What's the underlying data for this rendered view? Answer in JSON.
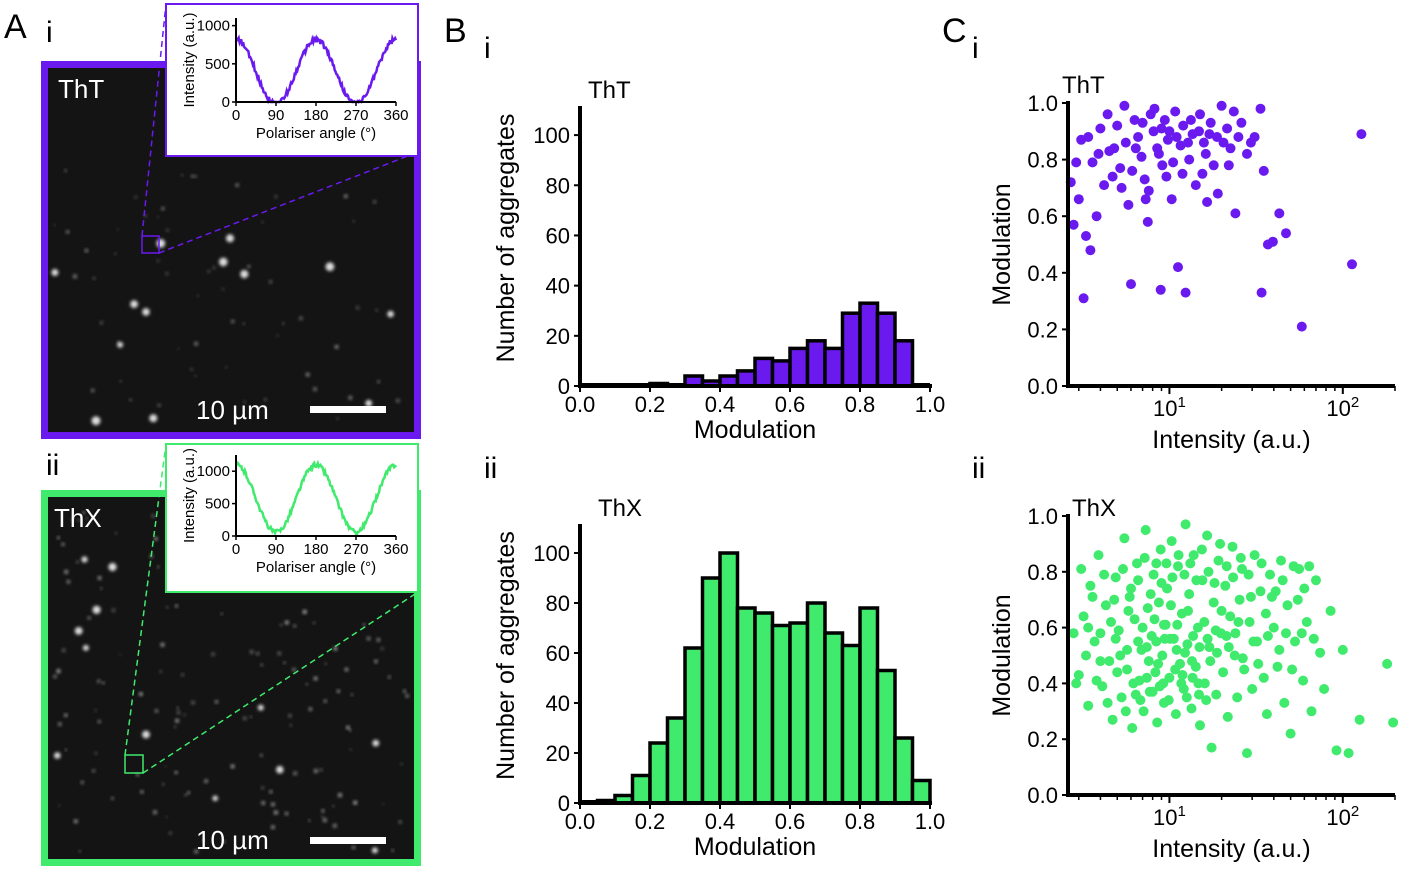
{
  "panels": {
    "A": "A",
    "B": "B",
    "C": "C",
    "sub_i": "i",
    "sub_ii": "ii"
  },
  "colors": {
    "tht": "#6a1aee",
    "thx": "#3fea6c",
    "micrograph_bg": "#141414",
    "spot": "#e8e8e8"
  },
  "micrographs": [
    {
      "dye": "ThT",
      "scalebar": "10 µm",
      "frame_color": "#6a1aee"
    },
    {
      "dye": "ThX",
      "scalebar": "10 µm",
      "frame_color": "#3fea6c"
    }
  ],
  "chart_data": [
    {
      "id": "A-i-inset",
      "type": "line",
      "xlabel": "Polariser angle (°)",
      "ylabel": "Intensity (a.u.)",
      "xlim": [
        0,
        360
      ],
      "ylim": [
        0,
        1100
      ],
      "xticks": [
        0,
        90,
        180,
        270,
        360
      ],
      "yticks": [
        0,
        500,
        1000
      ],
      "series": [
        {
          "color": "#6a1aee",
          "mean": 395,
          "amplitude": 420,
          "phase_deg": 90
        }
      ]
    },
    {
      "id": "A-ii-inset",
      "type": "line",
      "xlabel": "Polariser angle (°)",
      "ylabel": "Intensity (a.u.)",
      "xlim": [
        0,
        360
      ],
      "ylim": [
        0,
        1250
      ],
      "xticks": [
        0,
        90,
        180,
        270,
        360
      ],
      "yticks": [
        0,
        500,
        1000
      ],
      "series": [
        {
          "color": "#3fea6c",
          "mean": 580,
          "amplitude": 520,
          "phase_deg": 90
        }
      ]
    },
    {
      "id": "B-i",
      "type": "bar",
      "title": "ThT",
      "xlabel": "Modulation",
      "ylabel": "Number of aggregates",
      "xlim": [
        0,
        1
      ],
      "ylim": [
        0,
        110
      ],
      "xticks": [
        "0.0",
        "0.2",
        "0.4",
        "0.6",
        "0.8",
        "1.0"
      ],
      "yticks": [
        0,
        20,
        40,
        60,
        80,
        100
      ],
      "bin_width": 0.05,
      "bin_start": 0.0,
      "values": [
        0,
        0,
        0,
        0,
        1,
        0,
        4,
        2,
        4,
        6,
        11,
        10,
        15,
        18,
        15,
        29,
        33,
        29,
        18
      ],
      "color": "#6a1aee"
    },
    {
      "id": "B-ii",
      "type": "bar",
      "title": "ThX",
      "xlabel": "Modulation",
      "ylabel": "Number of aggregates",
      "xlim": [
        0,
        1
      ],
      "ylim": [
        0,
        110
      ],
      "xticks": [
        "0.0",
        "0.2",
        "0.4",
        "0.6",
        "0.8",
        "1.0"
      ],
      "yticks": [
        0,
        20,
        40,
        60,
        80,
        100
      ],
      "bin_width": 0.05,
      "bin_start": 0.0,
      "values": [
        0,
        1,
        3,
        11,
        24,
        34,
        62,
        90,
        100,
        78,
        76,
        71,
        72,
        80,
        68,
        63,
        78,
        53,
        26,
        9
      ],
      "color": "#3fea6c"
    },
    {
      "id": "C-i",
      "type": "scatter",
      "title": "ThT",
      "xlabel": "Intensity (a.u.)",
      "ylabel": "Modulation",
      "xscale": "log",
      "xlim": [
        2.6,
        200
      ],
      "ylim": [
        0,
        1
      ],
      "xticks": [
        10,
        100
      ],
      "yticks": [
        "0.0",
        "0.2",
        "0.4",
        "0.6",
        "0.8",
        "1.0"
      ],
      "color": "#6a1aee",
      "points": [
        [
          3.2,
          0.31
        ],
        [
          3.5,
          0.48
        ],
        [
          3.3,
          0.53
        ],
        [
          2.8,
          0.57
        ],
        [
          3.0,
          0.66
        ],
        [
          2.7,
          0.72
        ],
        [
          2.9,
          0.79
        ],
        [
          3.1,
          0.87
        ],
        [
          3.4,
          0.88
        ],
        [
          3.6,
          0.79
        ],
        [
          3.8,
          0.6
        ],
        [
          4.2,
          0.71
        ],
        [
          4.0,
          0.91
        ],
        [
          4.4,
          0.96
        ],
        [
          4.8,
          0.84
        ],
        [
          5.0,
          0.92
        ],
        [
          5.5,
          0.99
        ],
        [
          5.2,
          0.77
        ],
        [
          5.8,
          0.64
        ],
        [
          6.0,
          0.36
        ],
        [
          6.3,
          0.94
        ],
        [
          6.6,
          0.88
        ],
        [
          6.9,
          0.81
        ],
        [
          7.2,
          0.73
        ],
        [
          7.5,
          0.58
        ],
        [
          7.8,
          0.96
        ],
        [
          8.1,
          0.9
        ],
        [
          8.5,
          0.84
        ],
        [
          8.9,
          0.34
        ],
        [
          9.1,
          0.78
        ],
        [
          9.4,
          0.94
        ],
        [
          9.8,
          0.87
        ],
        [
          10.3,
          0.66
        ],
        [
          10.8,
          0.97
        ],
        [
          11.2,
          0.42
        ],
        [
          11.6,
          0.85
        ],
        [
          12.0,
          0.92
        ],
        [
          12.4,
          0.33
        ],
        [
          13.0,
          0.8
        ],
        [
          13.6,
          0.89
        ],
        [
          14.2,
          0.71
        ],
        [
          15.0,
          0.96
        ],
        [
          15.8,
          0.86
        ],
        [
          16.5,
          0.65
        ],
        [
          17.3,
          0.93
        ],
        [
          18.0,
          0.78
        ],
        [
          19.0,
          0.68
        ],
        [
          20.0,
          0.99
        ],
        [
          21.5,
          0.91
        ],
        [
          22.5,
          0.84
        ],
        [
          24.0,
          0.61
        ],
        [
          26.0,
          0.93
        ],
        [
          28.0,
          0.82
        ],
        [
          31.0,
          0.88
        ],
        [
          33.5,
          0.98
        ],
        [
          35.0,
          0.76
        ],
        [
          34.0,
          0.33
        ],
        [
          37.0,
          0.5
        ],
        [
          39.5,
          0.51
        ],
        [
          43.0,
          0.61
        ],
        [
          47.0,
          0.54
        ],
        [
          58.0,
          0.21
        ],
        [
          113.0,
          0.43
        ],
        [
          128.0,
          0.89
        ],
        [
          4.5,
          0.83
        ],
        [
          5.6,
          0.86
        ],
        [
          6.1,
          0.76
        ],
        [
          7.0,
          0.93
        ],
        [
          7.6,
          0.69
        ],
        [
          8.2,
          0.98
        ],
        [
          9.0,
          0.91
        ],
        [
          9.6,
          0.74
        ],
        [
          10.0,
          0.9
        ],
        [
          11.0,
          0.88
        ],
        [
          12.8,
          0.86
        ],
        [
          14.8,
          0.9
        ],
        [
          16.2,
          0.82
        ],
        [
          18.8,
          0.88
        ],
        [
          22.0,
          0.78
        ],
        [
          25.0,
          0.88
        ],
        [
          3.9,
          0.82
        ],
        [
          4.7,
          0.74
        ],
        [
          6.4,
          0.84
        ],
        [
          8.7,
          0.82
        ],
        [
          10.5,
          0.79
        ],
        [
          13.3,
          0.94
        ],
        [
          17.0,
          0.89
        ],
        [
          23.5,
          0.97
        ],
        [
          29.5,
          0.86
        ],
        [
          5.3,
          0.7
        ],
        [
          7.3,
          0.66
        ],
        [
          11.9,
          0.75
        ],
        [
          15.5,
          0.75
        ],
        [
          20.5,
          0.86
        ]
      ]
    },
    {
      "id": "C-ii",
      "type": "scatter",
      "title": "ThX",
      "xlabel": "Intensity (a.u.)",
      "ylabel": "Modulation",
      "xscale": "log",
      "xlim": [
        2.6,
        200
      ],
      "ylim": [
        0,
        1
      ],
      "xticks": [
        10,
        100
      ],
      "yticks": [
        "0.0",
        "0.2",
        "0.4",
        "0.6",
        "0.8",
        "1.0"
      ],
      "color": "#3fea6c",
      "points": [
        [
          2.8,
          0.58
        ],
        [
          3.0,
          0.43
        ],
        [
          3.2,
          0.64
        ],
        [
          3.4,
          0.32
        ],
        [
          3.5,
          0.75
        ],
        [
          3.7,
          0.55
        ],
        [
          3.9,
          0.86
        ],
        [
          4.1,
          0.39
        ],
        [
          4.3,
          0.68
        ],
        [
          4.5,
          0.48
        ],
        [
          4.7,
          0.27
        ],
        [
          4.9,
          0.78
        ],
        [
          5.1,
          0.59
        ],
        [
          5.3,
          0.35
        ],
        [
          5.5,
          0.92
        ],
        [
          5.7,
          0.45
        ],
        [
          5.9,
          0.71
        ],
        [
          6.1,
          0.24
        ],
        [
          6.3,
          0.63
        ],
        [
          6.5,
          0.83
        ],
        [
          6.7,
          0.41
        ],
        [
          6.9,
          0.52
        ],
        [
          7.1,
          0.3
        ],
        [
          7.3,
          0.95
        ],
        [
          7.5,
          0.67
        ],
        [
          7.7,
          0.37
        ],
        [
          7.9,
          0.57
        ],
        [
          8.1,
          0.79
        ],
        [
          8.3,
          0.44
        ],
        [
          8.5,
          0.26
        ],
        [
          8.7,
          0.69
        ],
        [
          8.9,
          0.88
        ],
        [
          9.1,
          0.5
        ],
        [
          9.3,
          0.33
        ],
        [
          9.5,
          0.61
        ],
        [
          9.7,
          0.74
        ],
        [
          10.0,
          0.42
        ],
        [
          10.3,
          0.91
        ],
        [
          10.6,
          0.56
        ],
        [
          10.9,
          0.29
        ],
        [
          11.2,
          0.82
        ],
        [
          11.5,
          0.47
        ],
        [
          11.8,
          0.65
        ],
        [
          12.1,
          0.38
        ],
        [
          12.4,
          0.97
        ],
        [
          12.7,
          0.54
        ],
        [
          13.0,
          0.72
        ],
        [
          13.4,
          0.31
        ],
        [
          13.8,
          0.86
        ],
        [
          14.2,
          0.46
        ],
        [
          14.6,
          0.6
        ],
        [
          15.0,
          0.25
        ],
        [
          15.5,
          0.77
        ],
        [
          16.0,
          0.4
        ],
        [
          16.5,
          0.93
        ],
        [
          17.0,
          0.53
        ],
        [
          17.5,
          0.17
        ],
        [
          18.0,
          0.69
        ],
        [
          18.6,
          0.36
        ],
        [
          19.2,
          0.84
        ],
        [
          19.8,
          0.58
        ],
        [
          20.4,
          0.44
        ],
        [
          21.0,
          0.75
        ],
        [
          21.7,
          0.28
        ],
        [
          22.4,
          0.64
        ],
        [
          23.1,
          0.89
        ],
        [
          23.8,
          0.5
        ],
        [
          24.6,
          0.35
        ],
        [
          25.4,
          0.7
        ],
        [
          26.2,
          0.81
        ],
        [
          27.0,
          0.45
        ],
        [
          28.0,
          0.15
        ],
        [
          29.0,
          0.62
        ],
        [
          30.0,
          0.38
        ],
        [
          31.0,
          0.86
        ],
        [
          32.0,
          0.55
        ],
        [
          33.5,
          0.73
        ],
        [
          35.0,
          0.42
        ],
        [
          36.5,
          0.29
        ],
        [
          38.0,
          0.79
        ],
        [
          40.0,
          0.6
        ],
        [
          42.0,
          0.46
        ],
        [
          44.0,
          0.84
        ],
        [
          46.0,
          0.33
        ],
        [
          48.0,
          0.68
        ],
        [
          50.0,
          0.22
        ],
        [
          53.0,
          0.55
        ],
        [
          56.0,
          0.81
        ],
        [
          59.0,
          0.41
        ],
        [
          62.0,
          0.62
        ],
        [
          66.0,
          0.3
        ],
        [
          70.0,
          0.77
        ],
        [
          74.0,
          0.51
        ],
        [
          78.0,
          0.38
        ],
        [
          85.0,
          0.66
        ],
        [
          92.0,
          0.16
        ],
        [
          100.0,
          0.52
        ],
        [
          108.0,
          0.15
        ],
        [
          125.0,
          0.27
        ],
        [
          180.0,
          0.47
        ],
        [
          195.0,
          0.26
        ],
        [
          4.0,
          0.58
        ],
        [
          4.6,
          0.62
        ],
        [
          5.2,
          0.5
        ],
        [
          5.8,
          0.66
        ],
        [
          6.4,
          0.36
        ],
        [
          7.0,
          0.6
        ],
        [
          7.6,
          0.48
        ],
        [
          8.2,
          0.63
        ],
        [
          8.8,
          0.39
        ],
        [
          9.4,
          0.56
        ],
        [
          10.2,
          0.68
        ],
        [
          11.0,
          0.52
        ],
        [
          11.9,
          0.43
        ],
        [
          12.8,
          0.66
        ],
        [
          13.7,
          0.57
        ],
        [
          14.8,
          0.36
        ],
        [
          15.9,
          0.62
        ],
        [
          17.2,
          0.48
        ],
        [
          18.5,
          0.59
        ],
        [
          20.0,
          0.66
        ],
        [
          22.0,
          0.53
        ],
        [
          24.0,
          0.58
        ],
        [
          26.5,
          0.49
        ],
        [
          29.5,
          0.71
        ],
        [
          32.5,
          0.47
        ],
        [
          37.0,
          0.57
        ],
        [
          41.0,
          0.73
        ],
        [
          47.0,
          0.58
        ],
        [
          55.0,
          0.7
        ],
        [
          64.0,
          0.82
        ],
        [
          3.3,
          0.5
        ],
        [
          3.8,
          0.41
        ],
        [
          4.4,
          0.33
        ],
        [
          5.0,
          0.44
        ],
        [
          5.6,
          0.3
        ],
        [
          6.2,
          0.4
        ],
        [
          6.8,
          0.34
        ],
        [
          7.4,
          0.42
        ],
        [
          8.0,
          0.37
        ],
        [
          8.6,
          0.47
        ],
        [
          9.2,
          0.4
        ],
        [
          9.9,
          0.34
        ],
        [
          10.8,
          0.45
        ],
        [
          11.7,
          0.4
        ],
        [
          12.6,
          0.35
        ],
        [
          13.6,
          0.42
        ],
        [
          14.7,
          0.4
        ],
        [
          16.3,
          0.34
        ],
        [
          3.1,
          0.81
        ],
        [
          3.6,
          0.71
        ],
        [
          4.2,
          0.79
        ],
        [
          4.8,
          0.7
        ],
        [
          5.4,
          0.81
        ],
        [
          6.0,
          0.74
        ],
        [
          6.6,
          0.77
        ],
        [
          7.2,
          0.85
        ],
        [
          7.8,
          0.72
        ],
        [
          8.4,
          0.83
        ],
        [
          9.0,
          0.76
        ],
        [
          9.6,
          0.83
        ],
        [
          10.4,
          0.78
        ],
        [
          11.3,
          0.86
        ],
        [
          12.2,
          0.79
        ],
        [
          13.2,
          0.83
        ],
        [
          14.3,
          0.77
        ],
        [
          15.4,
          0.88
        ],
        [
          16.8,
          0.8
        ],
        [
          18.2,
          0.76
        ],
        [
          19.6,
          0.9
        ],
        [
          21.4,
          0.82
        ],
        [
          23.3,
          0.78
        ],
        [
          25.8,
          0.85
        ],
        [
          28.6,
          0.79
        ],
        [
          34.0,
          0.83
        ],
        [
          39.0,
          0.71
        ],
        [
          45.0,
          0.77
        ],
        [
          52.0,
          0.82
        ],
        [
          60.0,
          0.74
        ],
        [
          2.9,
          0.4
        ],
        [
          3.4,
          0.6
        ],
        [
          4.0,
          0.48
        ],
        [
          4.9,
          0.56
        ],
        [
          5.7,
          0.52
        ],
        [
          6.6,
          0.55
        ],
        [
          7.4,
          0.53
        ],
        [
          8.4,
          0.55
        ],
        [
          9.3,
          0.61
        ],
        [
          10.1,
          0.56
        ],
        [
          11.1,
          0.61
        ],
        [
          12.3,
          0.51
        ],
        [
          13.5,
          0.48
        ],
        [
          14.9,
          0.53
        ],
        [
          16.6,
          0.56
        ],
        [
          18.8,
          0.51
        ],
        [
          21.3,
          0.57
        ],
        [
          25.0,
          0.62
        ],
        [
          30.5,
          0.55
        ],
        [
          36.0,
          0.65
        ],
        [
          43.0,
          0.52
        ],
        [
          51.0,
          0.45
        ],
        [
          58.0,
          0.58
        ],
        [
          68.0,
          0.56
        ]
      ]
    }
  ]
}
